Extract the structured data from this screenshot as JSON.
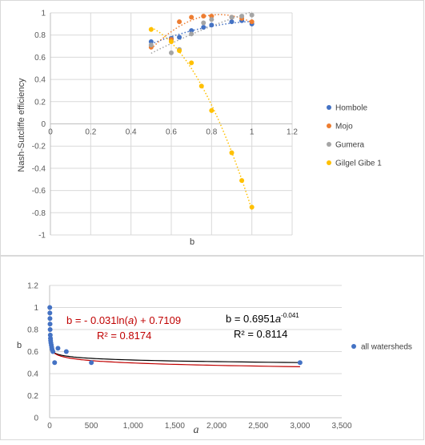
{
  "chart_data": [
    {
      "type": "scatter",
      "title": "",
      "xlabel": "b",
      "ylabel": "Nash-Sutcliffe efficiency",
      "xlim": [
        0,
        1.2
      ],
      "ylim": [
        -1,
        1
      ],
      "x_ticks": [
        "0",
        "0.2",
        "0.4",
        "0.6",
        "0.8",
        "1",
        "1.2"
      ],
      "y_ticks": [
        "1",
        "0.8",
        "0.6",
        "0.4",
        "0.2",
        "0",
        "-0.2",
        "-0.4",
        "-0.6",
        "-0.8",
        "-1"
      ],
      "grid": true,
      "legend_position": "right",
      "trendlines": "dotted polynomial per series",
      "series": [
        {
          "name": "Hombole",
          "color": "#4472c4",
          "x": [
            0.5,
            0.6,
            0.64,
            0.7,
            0.76,
            0.8,
            0.9,
            0.95,
            1.0
          ],
          "y": [
            0.74,
            0.77,
            0.78,
            0.84,
            0.87,
            0.89,
            0.92,
            0.93,
            0.9
          ]
        },
        {
          "name": "Mojo",
          "color": "#ed7d31",
          "x": [
            0.5,
            0.6,
            0.64,
            0.7,
            0.76,
            0.8,
            0.9,
            0.95,
            1.0
          ],
          "y": [
            0.69,
            0.76,
            0.92,
            0.96,
            0.97,
            0.97,
            0.96,
            0.95,
            0.92
          ]
        },
        {
          "name": "Gumera",
          "color": "#a5a5a5",
          "x": [
            0.5,
            0.6,
            0.64,
            0.7,
            0.76,
            0.8,
            0.9,
            0.95,
            1.0
          ],
          "y": [
            0.71,
            0.64,
            0.67,
            0.81,
            0.91,
            0.94,
            0.96,
            0.97,
            0.98
          ]
        },
        {
          "name": "Gilgel Gibe 1",
          "color": "#ffc000",
          "x": [
            0.5,
            0.6,
            0.64,
            0.7,
            0.75,
            0.8,
            0.9,
            0.95,
            1.0
          ],
          "y": [
            0.85,
            0.74,
            0.66,
            0.55,
            0.34,
            0.12,
            -0.26,
            -0.51,
            -0.75
          ]
        }
      ]
    },
    {
      "type": "scatter",
      "title": "",
      "xlabel": "a",
      "ylabel": "b",
      "xlim": [
        0,
        3500
      ],
      "ylim": [
        0,
        1.2
      ],
      "x_ticks": [
        "0",
        "500",
        "1,000",
        "1,500",
        "2,000",
        "2,500",
        "3,000",
        "3,500"
      ],
      "y_ticks": [
        "1.2",
        "1",
        "0.8",
        "0.6",
        "0.4",
        "0.2",
        "0"
      ],
      "grid": true,
      "legend_position": "right",
      "series": [
        {
          "name": "all watersheds",
          "color": "#4472c4",
          "x": [
            2,
            3,
            4,
            5,
            6,
            8,
            10,
            12,
            15,
            20,
            25,
            30,
            40,
            60,
            100,
            200,
            500,
            3000
          ],
          "y": [
            1.0,
            0.95,
            0.9,
            0.85,
            0.8,
            0.75,
            0.72,
            0.7,
            0.68,
            0.66,
            0.64,
            0.62,
            0.6,
            0.5,
            0.63,
            0.6,
            0.5,
            0.5
          ]
        }
      ],
      "annotations": [
        {
          "text_main": "b = - 0.031ln(",
          "text_var": "a",
          "text_rest": ") + 0.7109",
          "r2": "R² = 0.8174",
          "color": "#c00000"
        },
        {
          "text_main": "b = 0.6951",
          "text_var": "a",
          "text_exp": "-0.041",
          "r2": "R² = 0.8114",
          "color": "#000000"
        }
      ]
    }
  ]
}
